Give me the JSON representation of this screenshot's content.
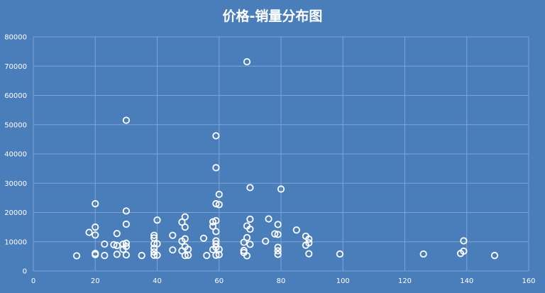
{
  "chart_data": {
    "type": "scatter",
    "title": "价格-销量分布图",
    "xlabel": "",
    "ylabel": "",
    "xlim": [
      0,
      160
    ],
    "ylim": [
      0,
      80000
    ],
    "x_ticks": [
      0,
      20,
      40,
      60,
      80,
      100,
      120,
      140,
      160
    ],
    "y_ticks": [
      0,
      10000,
      20000,
      30000,
      40000,
      50000,
      60000,
      70000,
      80000
    ],
    "grid": true,
    "legend": "none",
    "colors": {
      "background": "#4a7ebb",
      "marker": "#ffffff",
      "grid": "#7fa3d3"
    },
    "series": [
      {
        "points": [
          [
            14,
            5200
          ],
          [
            18,
            13200
          ],
          [
            20,
            23000
          ],
          [
            20,
            15000
          ],
          [
            20,
            12300
          ],
          [
            20,
            6000
          ],
          [
            20,
            5600
          ],
          [
            23,
            9200
          ],
          [
            23,
            5300
          ],
          [
            26,
            9000
          ],
          [
            27,
            8700
          ],
          [
            27,
            12800
          ],
          [
            27,
            5700
          ],
          [
            29,
            9200
          ],
          [
            29,
            7400
          ],
          [
            30,
            51500
          ],
          [
            30,
            20500
          ],
          [
            30,
            16000
          ],
          [
            30,
            9500
          ],
          [
            30,
            8400
          ],
          [
            30,
            5500
          ],
          [
            35,
            5300
          ],
          [
            39,
            12200
          ],
          [
            39,
            11300
          ],
          [
            39,
            9300
          ],
          [
            39,
            7800
          ],
          [
            39,
            6500
          ],
          [
            39,
            5400
          ],
          [
            40,
            17400
          ],
          [
            40,
            9300
          ],
          [
            40,
            5400
          ],
          [
            45,
            12200
          ],
          [
            45,
            7200
          ],
          [
            48,
            16700
          ],
          [
            48,
            10200
          ],
          [
            48,
            6900
          ],
          [
            49,
            18500
          ],
          [
            49,
            15000
          ],
          [
            49,
            11000
          ],
          [
            49,
            8300
          ],
          [
            49,
            5300
          ],
          [
            50,
            7400
          ],
          [
            50,
            5400
          ],
          [
            55,
            11200
          ],
          [
            56,
            5300
          ],
          [
            58,
            16800
          ],
          [
            58,
            15300
          ],
          [
            58,
            7300
          ],
          [
            59,
            46200
          ],
          [
            59,
            35300
          ],
          [
            59,
            23000
          ],
          [
            59,
            17200
          ],
          [
            59,
            13500
          ],
          [
            59,
            10300
          ],
          [
            59,
            9300
          ],
          [
            59,
            8100
          ],
          [
            59,
            5400
          ],
          [
            60,
            26200
          ],
          [
            60,
            22700
          ],
          [
            60,
            7400
          ],
          [
            60,
            5600
          ],
          [
            68,
            9800
          ],
          [
            68,
            7000
          ],
          [
            68,
            6300
          ],
          [
            69,
            71500
          ],
          [
            69,
            15400
          ],
          [
            69,
            11400
          ],
          [
            69,
            5200
          ],
          [
            70,
            28500
          ],
          [
            70,
            17700
          ],
          [
            70,
            14300
          ],
          [
            70,
            9100
          ],
          [
            75,
            10200
          ],
          [
            76,
            17800
          ],
          [
            78,
            12700
          ],
          [
            79,
            15900
          ],
          [
            79,
            12500
          ],
          [
            79,
            8100
          ],
          [
            79,
            6900
          ],
          [
            79,
            5700
          ],
          [
            80,
            28000
          ],
          [
            85,
            14000
          ],
          [
            88,
            11900
          ],
          [
            88,
            8800
          ],
          [
            89,
            10900
          ],
          [
            89,
            9600
          ],
          [
            89,
            5900
          ],
          [
            99,
            5800
          ],
          [
            126,
            5800
          ],
          [
            138,
            6000
          ],
          [
            139,
            10300
          ],
          [
            139,
            6800
          ],
          [
            149,
            5300
          ]
        ]
      }
    ]
  }
}
